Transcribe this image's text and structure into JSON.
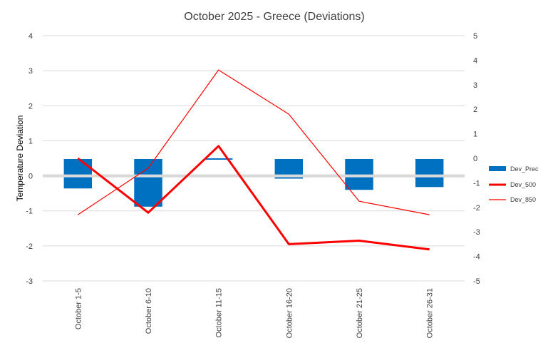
{
  "chart_data": {
    "type": "bar",
    "title": "October 2025 - Greece (Deviations)",
    "ylabel": "Temperature Deviation",
    "categories": [
      "October 1-5",
      "October 6-10",
      "October 11-15",
      "October 16-20",
      "October 21-25",
      "October 26-31"
    ],
    "ylim": [
      -3,
      4
    ],
    "y_ticks": [
      "4",
      "3",
      "2",
      "1",
      "0",
      "-1",
      "-2",
      "-3"
    ],
    "y2lim": [
      -5,
      5
    ],
    "y2_ticks": [
      "5",
      "4",
      "3",
      "2",
      "1",
      "0",
      "-1",
      "-2",
      "-3",
      "-4",
      "-5"
    ],
    "grid": "horizontal",
    "legend_position": "right",
    "series": [
      {
        "name": "Dev_Prec",
        "kind": "floating-bar",
        "axis": "left",
        "low": [
          -0.36,
          -0.88,
          0.46,
          -0.08,
          -0.4,
          -0.32
        ],
        "high": [
          0.48,
          0.48,
          0.5,
          0.48,
          0.48,
          0.48
        ],
        "color": "#0070c0"
      },
      {
        "name": "Dev_500",
        "kind": "line",
        "axis": "left",
        "values": [
          0.5,
          -1.05,
          0.85,
          -1.95,
          -1.85,
          -2.1
        ],
        "color": "#ff0000",
        "width": "thick"
      },
      {
        "name": "Dev_850",
        "kind": "line",
        "axis": "right",
        "values": [
          -2.3,
          -0.4,
          3.6,
          1.8,
          -1.75,
          -2.3
        ],
        "color": "#ff0000",
        "width": "thin"
      }
    ]
  }
}
